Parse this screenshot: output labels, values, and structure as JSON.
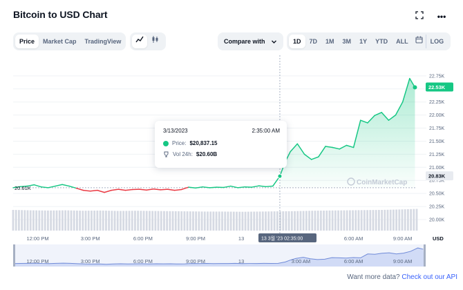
{
  "header": {
    "title": "Bitcoin to USD Chart",
    "fullscreen_icon": "expand-icon",
    "more_icon": "more-horizontal-icon"
  },
  "view_tabs": [
    {
      "label": "Price",
      "active": true
    },
    {
      "label": "Market Cap",
      "active": false
    },
    {
      "label": "TradingView",
      "active": false
    }
  ],
  "chart_type_icons": [
    "line-chart-icon",
    "candlestick-icon"
  ],
  "compare": {
    "label": "Compare with"
  },
  "range_tabs": [
    {
      "label": "1D",
      "active": true
    },
    {
      "label": "7D"
    },
    {
      "label": "1M"
    },
    {
      "label": "3M"
    },
    {
      "label": "1Y"
    },
    {
      "label": "YTD"
    },
    {
      "label": "ALL"
    }
  ],
  "calendar_icon": "calendar-icon",
  "log_label": "LOG",
  "watermark": "CoinMarketCap",
  "tooltip": {
    "date": "3/13/2023",
    "time": "2:35:00 AM",
    "price_label": "Price:",
    "price_value": "$20,837.15",
    "vol_label": "Vol 24h:",
    "vol_value": "$20.60B"
  },
  "reference_price_label": "20.61K",
  "crosshair_label": "13 3월 '23 02:35:00",
  "footer": {
    "text": "Want more data?",
    "link": "Check out our API"
  },
  "colors": {
    "up": "#16c784",
    "down": "#ea3943",
    "accent": "#3861fb"
  },
  "chart_data": {
    "type": "line",
    "ylabel": "USD",
    "ylim": [
      20000,
      22880
    ],
    "y_ticks": [
      "22.75K",
      "22.50K",
      "22.25K",
      "22.00K",
      "21.75K",
      "21.50K",
      "21.25K",
      "21.00K",
      "20.75K",
      "20.50K",
      "20.25K",
      "20.00K"
    ],
    "x_ticks": [
      "12:00 PM",
      "3:00 PM",
      "6:00 PM",
      "9:00 PM",
      "13",
      "3:00 AM",
      "6:00 AM",
      "9:00 AM"
    ],
    "current_price_label": "22.53K",
    "crosshair_price_label": "20.83K",
    "reference_price": 20610,
    "navigator_x_ticks": [
      "12:00 PM",
      "3:00 PM",
      "6:00 PM",
      "9:00 PM",
      "13",
      "3:00 AM",
      "6:00 AM",
      "9:00 AM"
    ],
    "series": [
      {
        "x": [
          0.0,
          0.4,
          0.8,
          1.2,
          1.6,
          2.0,
          2.4,
          2.8,
          3.2,
          3.6,
          4.0,
          4.4,
          4.8,
          5.2,
          5.6,
          6.0,
          6.4,
          6.8,
          7.2,
          7.6,
          8.0,
          8.4,
          8.8,
          9.2,
          9.6,
          10.0,
          10.4,
          10.8,
          11.2,
          11.6,
          12.0,
          12.4,
          12.8,
          13.2,
          13.6,
          14.0,
          14.4,
          14.8,
          15.2,
          15.5,
          15.8,
          16.2,
          16.6,
          17.0,
          17.4,
          17.8,
          18.2,
          18.6,
          19.0,
          19.4,
          19.8,
          20.2,
          20.6,
          21.0,
          21.4,
          21.8,
          22.2,
          22.6,
          22.9
        ],
        "values": [
          20610,
          20630,
          20640,
          20665,
          20625,
          20610,
          20640,
          20670,
          20640,
          20600,
          20560,
          20545,
          20560,
          20520,
          20560,
          20580,
          20560,
          20575,
          20580,
          20565,
          20585,
          20570,
          20580,
          20560,
          20575,
          20620,
          20605,
          20625,
          20610,
          20620,
          20615,
          20640,
          20610,
          20625,
          20620,
          20645,
          20630,
          20640,
          20830,
          21100,
          21300,
          21450,
          21250,
          21150,
          21200,
          21400,
          21380,
          21350,
          21420,
          21380,
          21900,
          21850,
          21990,
          22050,
          21900,
          22000,
          22250,
          22700,
          22530
        ]
      }
    ],
    "volume": {
      "x": [
        0,
        1,
        2,
        3,
        4,
        5,
        6,
        7,
        8,
        9,
        10,
        11,
        12,
        13,
        14,
        15,
        16,
        17,
        18,
        19,
        20,
        21,
        22,
        23
      ],
      "values": [
        1.0,
        0.98,
        0.97,
        0.98,
        0.96,
        0.97,
        0.95,
        0.96,
        0.95,
        0.94,
        0.93,
        0.92,
        0.92,
        0.91,
        0.92,
        0.93,
        0.94,
        0.96,
        0.97,
        0.98,
        0.99,
        1.0,
        1.02,
        1.05
      ]
    }
  }
}
